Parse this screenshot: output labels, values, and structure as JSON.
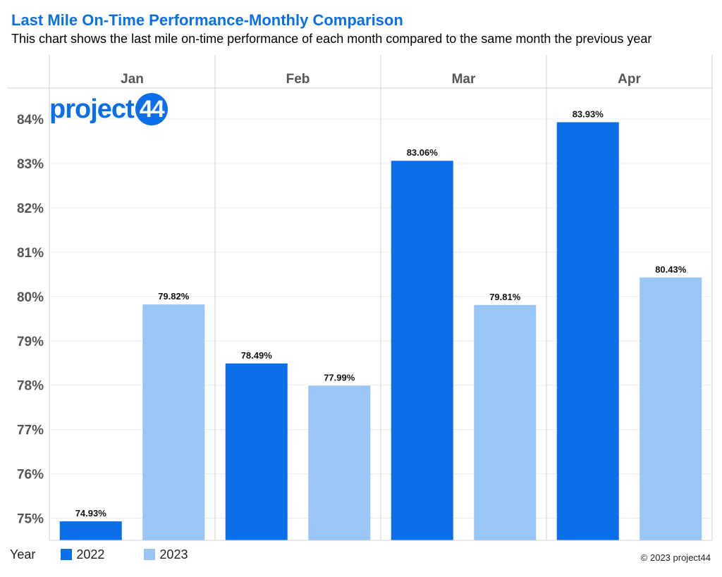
{
  "header": {
    "title": "Last Mile On-Time Performance-Monthly Comparison",
    "subtitle": "This chart shows the last mile on-time performance of each month compared to the same month the previous year"
  },
  "logo": {
    "text": "project",
    "badge_text": "44"
  },
  "legend": {
    "title": "Year",
    "items": [
      {
        "label": "2022",
        "color": "#0A6FE8"
      },
      {
        "label": "2023",
        "color": "#9AC6F5"
      }
    ]
  },
  "footer": {
    "copyright": "© 2023 project44"
  },
  "chart_data": {
    "type": "bar",
    "categories": [
      "Jan",
      "Feb",
      "Mar",
      "Apr"
    ],
    "series": [
      {
        "name": "2022",
        "color": "#0A6FE8",
        "values": [
          74.93,
          78.49,
          83.06,
          83.93
        ],
        "labels": [
          "74.93%",
          "78.49%",
          "83.06%",
          "83.93%"
        ]
      },
      {
        "name": "2023",
        "color": "#9AC6F5",
        "values": [
          79.82,
          77.99,
          79.81,
          80.43
        ],
        "labels": [
          "79.82%",
          "77.99%",
          "79.81%",
          "80.43%"
        ]
      }
    ],
    "yticks": [
      "75%",
      "76%",
      "77%",
      "78%",
      "79%",
      "80%",
      "81%",
      "82%",
      "83%",
      "84%"
    ],
    "ytick_values": [
      75,
      76,
      77,
      78,
      79,
      80,
      81,
      82,
      83,
      84
    ],
    "ylim": [
      74.5,
      84.7
    ],
    "grid": true,
    "legend_position": "bottom-left"
  }
}
